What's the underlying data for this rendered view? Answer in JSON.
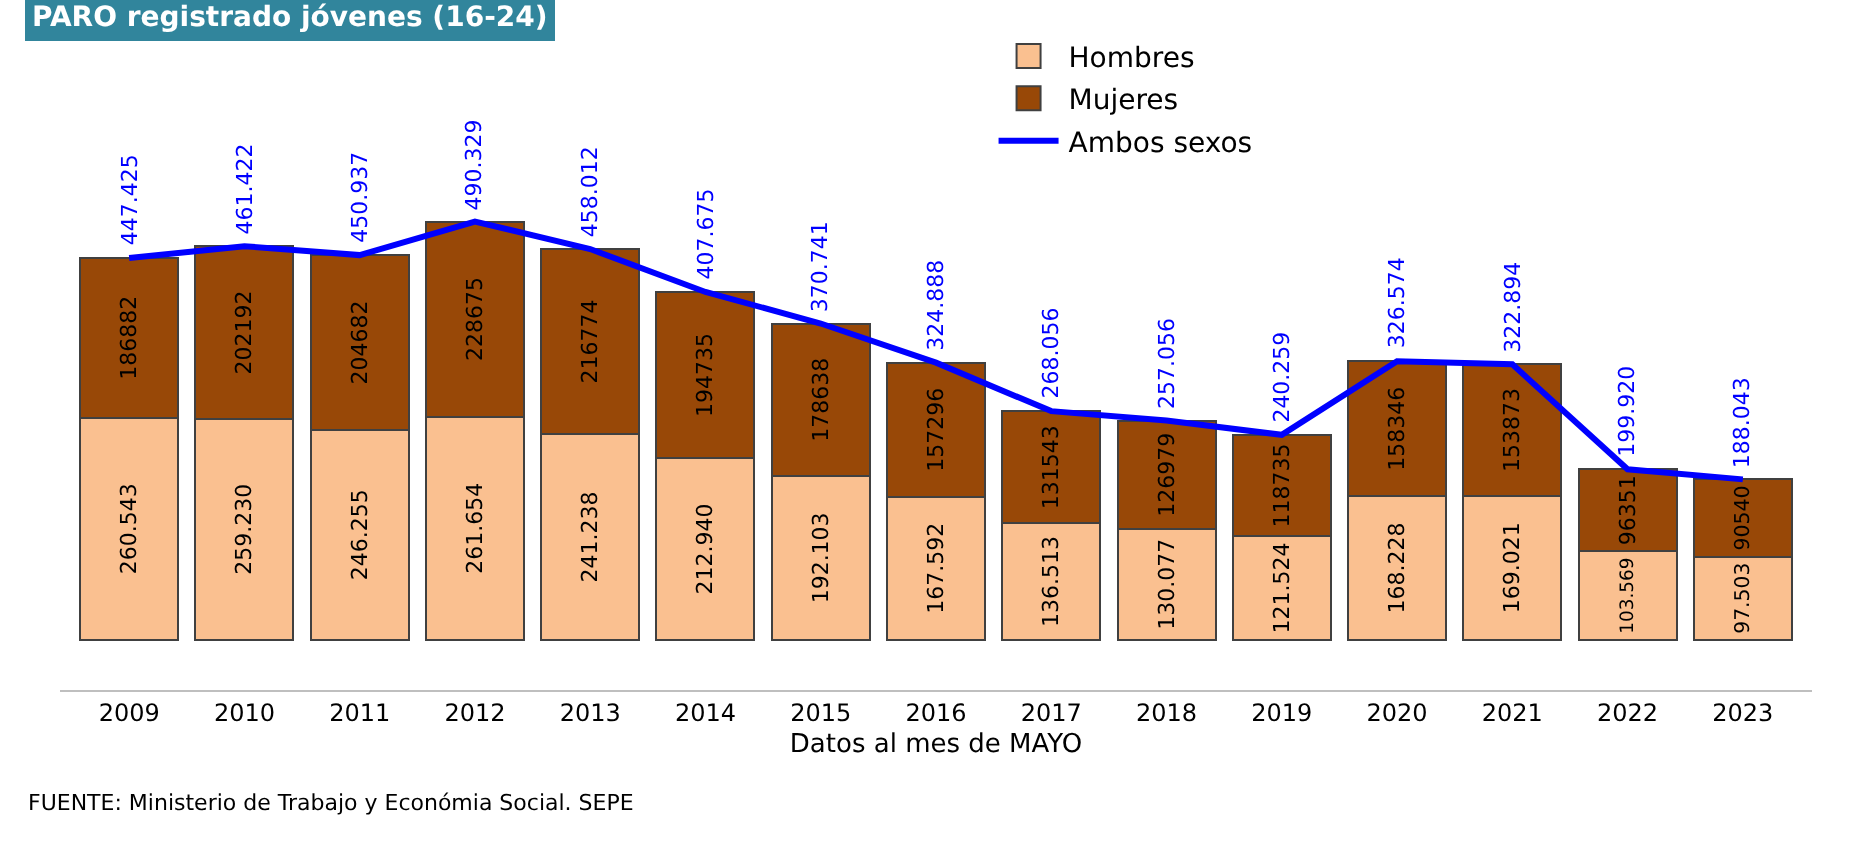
{
  "chart_data": {
    "type": "bar",
    "stacked": true,
    "title": "PARO registrado jóvenes (16-24)",
    "xlabel": "Datos al mes de MAYO",
    "categories": [
      "2009",
      "2010",
      "2011",
      "2012",
      "2013",
      "2014",
      "2015",
      "2016",
      "2017",
      "2018",
      "2019",
      "2020",
      "2021",
      "2022",
      "2023"
    ],
    "series": [
      {
        "name": "Hombres",
        "color": "#fac090",
        "values": [
          260543,
          259230,
          246255,
          261654,
          241238,
          212940,
          192103,
          167592,
          136513,
          130077,
          121524,
          168228,
          169021,
          103569,
          97503
        ],
        "value_labels": [
          "260.543",
          "259.230",
          "246.255",
          "261.654",
          "241.238",
          "212.940",
          "192.103",
          "167.592",
          "136.513",
          "130.077",
          "121.524",
          "168.228",
          "169.021",
          "103.569",
          "97.503"
        ]
      },
      {
        "name": "Mujeres",
        "color": "#984807",
        "values": [
          186882,
          202192,
          204682,
          228675,
          216774,
          194735,
          178638,
          157296,
          131543,
          126979,
          118735,
          158346,
          153873,
          96351,
          90540
        ],
        "value_labels": [
          "186882",
          "202192",
          "204682",
          "228675",
          "216774",
          "194735",
          "178638",
          "157296",
          "131543",
          "126979",
          "118735",
          "158346",
          "153873",
          "96351",
          "90540"
        ]
      },
      {
        "name": "Ambos sexos",
        "type": "line",
        "color": "#0000ff",
        "marker": "none",
        "values": [
          447425,
          461422,
          450937,
          490329,
          458012,
          407675,
          370741,
          324888,
          268056,
          257056,
          240259,
          326574,
          322894,
          199920,
          188043
        ],
        "value_labels": [
          "447.425",
          "461.422",
          "450.937",
          "490.329",
          "458.012",
          "407.675",
          "370.741",
          "324.888",
          "268.056",
          "257.056",
          "240.259",
          "326.574",
          "322.894",
          "199.920",
          "188.043"
        ]
      }
    ],
    "legend": "top",
    "annotations": [
      "FUENTE: Ministerio de Trabajo y Económia Social. SEPE"
    ]
  }
}
